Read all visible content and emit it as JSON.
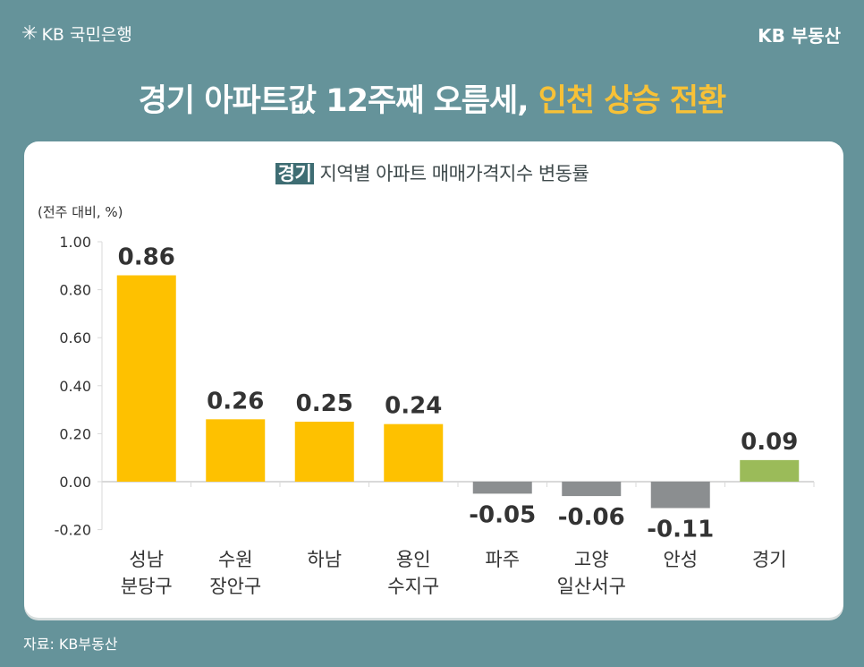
{
  "brand": {
    "left_logo": "KB 국민은행",
    "right_logo": "KB 부동산"
  },
  "headline": {
    "main": "경기 아파트값 12주째 오름세, ",
    "highlight": "인천 상승 전환"
  },
  "source": "자료: KB부동산",
  "colors": {
    "background": "#65939a",
    "positive": "#fec100",
    "negative": "#8b8e90",
    "total": "#9bbb59",
    "highlight": "#f7c137"
  },
  "chart_data": {
    "type": "bar",
    "title_tag": "경기",
    "title": "지역별 아파트 매매가격지수 변동률",
    "ylabel": "(전주 대비, %)",
    "ylim": [
      -0.2,
      1.0
    ],
    "yticks": [
      "1.00",
      "0.80",
      "0.60",
      "0.40",
      "0.20",
      "0.00",
      "-0.20"
    ],
    "grid": false,
    "categories": [
      [
        "성남",
        "분당구"
      ],
      [
        "수원",
        "장안구"
      ],
      [
        "하남"
      ],
      [
        "용인",
        "수지구"
      ],
      [
        "파주"
      ],
      [
        "고양",
        "일산서구"
      ],
      [
        "안성"
      ],
      [
        "경기"
      ]
    ],
    "values": [
      0.86,
      0.26,
      0.25,
      0.24,
      -0.05,
      -0.06,
      -0.11,
      0.09
    ],
    "labels": [
      "0.86",
      "0.26",
      "0.25",
      "0.24",
      "-0.05",
      "-0.06",
      "-0.11",
      "0.09"
    ]
  }
}
